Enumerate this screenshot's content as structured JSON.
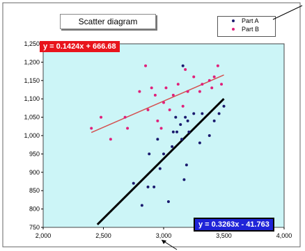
{
  "chart_data": {
    "type": "scatter",
    "title": "Scatter diagram",
    "xlim": [
      2000,
      4000
    ],
    "ylim": [
      750,
      1250
    ],
    "x_ticks": [
      "2,000",
      "2,500",
      "3,000",
      "3,500",
      "4,000"
    ],
    "y_ticks": [
      "750",
      "800",
      "850",
      "900",
      "950",
      "1,000",
      "1,050",
      "1,100",
      "1,150",
      "1,200",
      "1,250"
    ],
    "grid": false,
    "plot_background": "#ccf5f7",
    "legend_position": "top-right",
    "series": [
      {
        "name": "Part  A",
        "color": "#1a1a6e",
        "points": [
          [
            2750,
            870
          ],
          [
            2820,
            810
          ],
          [
            2870,
            860
          ],
          [
            2880,
            950
          ],
          [
            2920,
            860
          ],
          [
            2950,
            990
          ],
          [
            2970,
            910
          ],
          [
            3000,
            950
          ],
          [
            3040,
            820
          ],
          [
            3070,
            970
          ],
          [
            3080,
            1010
          ],
          [
            3100,
            1050
          ],
          [
            3110,
            1010
          ],
          [
            3140,
            1030
          ],
          [
            3150,
            990
          ],
          [
            3160,
            1190
          ],
          [
            3170,
            880
          ],
          [
            3180,
            1050
          ],
          [
            3190,
            920
          ],
          [
            3200,
            1040
          ],
          [
            3210,
            1010
          ],
          [
            3250,
            1060
          ],
          [
            3300,
            980
          ],
          [
            3320,
            1060
          ],
          [
            3380,
            1000
          ],
          [
            3420,
            1040
          ],
          [
            3460,
            1060
          ],
          [
            3500,
            1080
          ]
        ],
        "trendline": {
          "slope": 0.3263,
          "intercept": -41.763,
          "x_range": [
            2450,
            3500
          ],
          "color": "#000000"
        },
        "equation_label": "y = 0.3263x - 41.763"
      },
      {
        "name": "Part  B",
        "color": "#e0207a",
        "points": [
          [
            2400,
            1020
          ],
          [
            2480,
            1050
          ],
          [
            2560,
            990
          ],
          [
            2680,
            1050
          ],
          [
            2700,
            1020
          ],
          [
            2800,
            1120
          ],
          [
            2850,
            1190
          ],
          [
            2870,
            1070
          ],
          [
            2900,
            1130
          ],
          [
            2930,
            1110
          ],
          [
            2950,
            1040
          ],
          [
            2980,
            1020
          ],
          [
            3000,
            1090
          ],
          [
            3020,
            1130
          ],
          [
            3050,
            1070
          ],
          [
            3080,
            1110
          ],
          [
            3120,
            1140
          ],
          [
            3160,
            1080
          ],
          [
            3180,
            1180
          ],
          [
            3200,
            1120
          ],
          [
            3250,
            1160
          ],
          [
            3300,
            1120
          ],
          [
            3320,
            1140
          ],
          [
            3380,
            1150
          ],
          [
            3400,
            1130
          ],
          [
            3420,
            1160
          ],
          [
            3450,
            1190
          ],
          [
            3480,
            1140
          ]
        ],
        "trendline": {
          "slope": 0.1424,
          "intercept": 666.68,
          "x_range": [
            2400,
            3500
          ],
          "color": "#d45050"
        },
        "equation_label": "y = 0.1424x + 666.68"
      }
    ]
  }
}
